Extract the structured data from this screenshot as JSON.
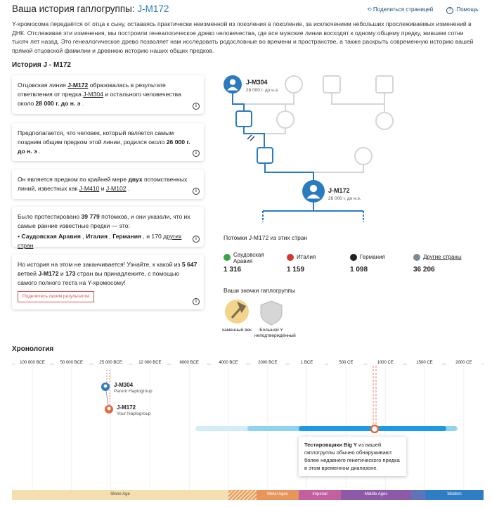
{
  "header": {
    "title": "Ваша история гаплогруппы:",
    "haplogroup": "J-M172",
    "share": "Поделиться страницей",
    "help": "Помощь"
  },
  "intro": "Y-хромосома передаётся от отца к сыну, оставаясь практически неизменной из поколения в поколение, за исключением небольших прослеживаемых изменений в ДНК. Отслеживая эти изменения, мы построили генеалогическое древо человечества, где все мужские линии восходят к одному общему предку, жившем сотни тысяч лет назад. Это генеалогическое древо позволяет нам исследовать родословные во времени и пространстве, а также раскрыть современную историю вашей прямой отцовской фамилии и древнюю историю наших общих предков.",
  "history": {
    "title": "История J - M172",
    "cards": [
      {
        "parts": [
          "Отцовская линия ",
          "J-M172",
          " образовалась в результате ответвления от предка ",
          "J-M304",
          " и остального человечества около ",
          "28 000 г. до н. э",
          " ."
        ]
      },
      {
        "parts": [
          "Предполагается, что человек, который является самым поздним общим предком этой линии, родился около ",
          "26 000 г. до н. э",
          " ."
        ]
      },
      {
        "parts": [
          "Он является предком по крайней мере ",
          "двух",
          " потомственных линий, известных как ",
          "J-M410",
          " и ",
          "J-M102",
          " ."
        ]
      },
      {
        "parts": [
          "Было протестировано ",
          "39 779",
          " потомков, и они указали, что их самые ранние известные предки — это:"
        ],
        "bullet": [
          "Саудовская Аравия",
          " , ",
          "Италия",
          " , ",
          "Германия",
          " , и 170 ",
          "других стран"
        ]
      },
      {
        "parts": [
          "Но история на этом не заканчивается! Узнайте, к какой из ",
          "5 647",
          " ветвей ",
          "J-M172",
          " и ",
          "173",
          " стран вы принадлежите, с помощью самого полного теста на Y-хромосому!"
        ],
        "button": "Поделитесь своим результатом"
      }
    ]
  },
  "tree": {
    "parent": {
      "name": "J-M304",
      "date": "28 000 г. до н.э."
    },
    "self": {
      "name": "J-M172",
      "date": "26 000 г. до н.э."
    }
  },
  "countries": {
    "title": "Потомки J-M172 из этих стран",
    "items": [
      {
        "name": "Саудовская Аравия",
        "count": "1 316",
        "color": "#3aa34a"
      },
      {
        "name": "Италия",
        "count": "1 159",
        "color": "#d6362f"
      },
      {
        "name": "Германия",
        "count": "1 098",
        "color": "#222222"
      },
      {
        "name": "Другие страны",
        "count": "36 206",
        "color": "#7d8a95"
      }
    ]
  },
  "badges": {
    "title": "Ваши значки гаплогруппы",
    "items": [
      "каменный век",
      "Большой Y неподтверждённый"
    ]
  },
  "timeline": {
    "title": "Хронология",
    "labels": [
      "100 000 BCE",
      "50 000 BCE",
      "25 000 BCE",
      "12 000 BCE",
      "6000 BCE",
      "4000 BCE",
      "2000 BCE",
      "1 BCE",
      "500 CE",
      "1000 CE",
      "1500 CE",
      "2000 CE"
    ],
    "parent": {
      "name": "J-M304",
      "role": "Parent Haplogroup"
    },
    "self": {
      "name": "J-M172",
      "role": "Your Haplogroup"
    },
    "tooltip": [
      "Тестировщики ",
      "Big Y",
      " из вашей гаплогруппы обычно обнаруживают более недавнего генетического предка в этом временном диапазоне."
    ],
    "eras": [
      "Stone Age",
      "Metal Ages",
      "Imperial",
      "Middle Ages",
      "Modern"
    ]
  }
}
